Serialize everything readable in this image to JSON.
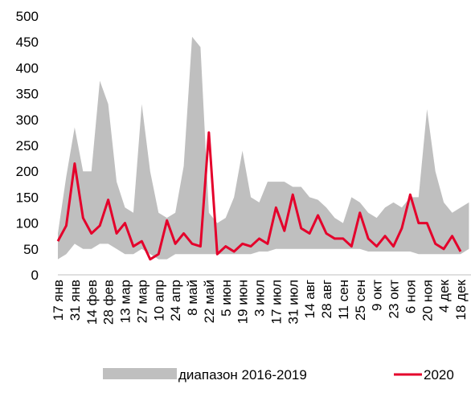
{
  "chart_data": {
    "type": "band_line",
    "categories": [
      "17 янв",
      null,
      "31 янв",
      null,
      "14 фев",
      null,
      "28 фев",
      null,
      "13 мар",
      null,
      "27 мар",
      null,
      "10 апр",
      null,
      "24 апр",
      null,
      "8 май",
      null,
      "22 май",
      null,
      "5 июн",
      null,
      "19 июн",
      null,
      "3 июл",
      null,
      "17 июл",
      null,
      "31 июл",
      null,
      "14 авг",
      null,
      "28 авг",
      null,
      "11 сен",
      null,
      "25 сен",
      null,
      "9 окт",
      null,
      "23 окт",
      null,
      "6 ноя",
      null,
      "20 ноя",
      null,
      "4 дек",
      null,
      "18 дек",
      null
    ],
    "series": [
      {
        "name": "диапазон 2016-2019",
        "color": "#bfbfbf",
        "low": [
          30,
          40,
          60,
          50,
          50,
          60,
          60,
          50,
          40,
          40,
          50,
          40,
          30,
          30,
          40,
          40,
          40,
          40,
          40,
          40,
          40,
          40,
          40,
          40,
          45,
          45,
          50,
          50,
          50,
          50,
          50,
          50,
          50,
          50,
          50,
          50,
          50,
          45,
          45,
          45,
          45,
          45,
          45,
          40,
          40,
          40,
          40,
          40,
          40,
          50
        ],
        "high": [
          80,
          190,
          285,
          200,
          200,
          375,
          330,
          180,
          130,
          120,
          330,
          200,
          120,
          110,
          120,
          210,
          460,
          440,
          120,
          100,
          110,
          150,
          240,
          150,
          140,
          180,
          180,
          180,
          170,
          170,
          150,
          145,
          130,
          110,
          100,
          150,
          140,
          120,
          110,
          130,
          140,
          130,
          150,
          150,
          320,
          200,
          140,
          120,
          130,
          140
        ]
      },
      {
        "name": "2020",
        "color": "#e4002b",
        "values": [
          65,
          95,
          215,
          110,
          80,
          95,
          145,
          80,
          100,
          55,
          65,
          30,
          40,
          105,
          60,
          80,
          60,
          55,
          275,
          40,
          55,
          45,
          60,
          55,
          70,
          60,
          130,
          85,
          155,
          90,
          80,
          115,
          80,
          70,
          70,
          55,
          120,
          70,
          55,
          75,
          55,
          90,
          155,
          100,
          100,
          60,
          50,
          75,
          45,
          null
        ]
      }
    ],
    "ylim": [
      0,
      500
    ],
    "yticks": [
      0,
      50,
      100,
      150,
      200,
      250,
      300,
      350,
      400,
      450,
      500
    ]
  }
}
